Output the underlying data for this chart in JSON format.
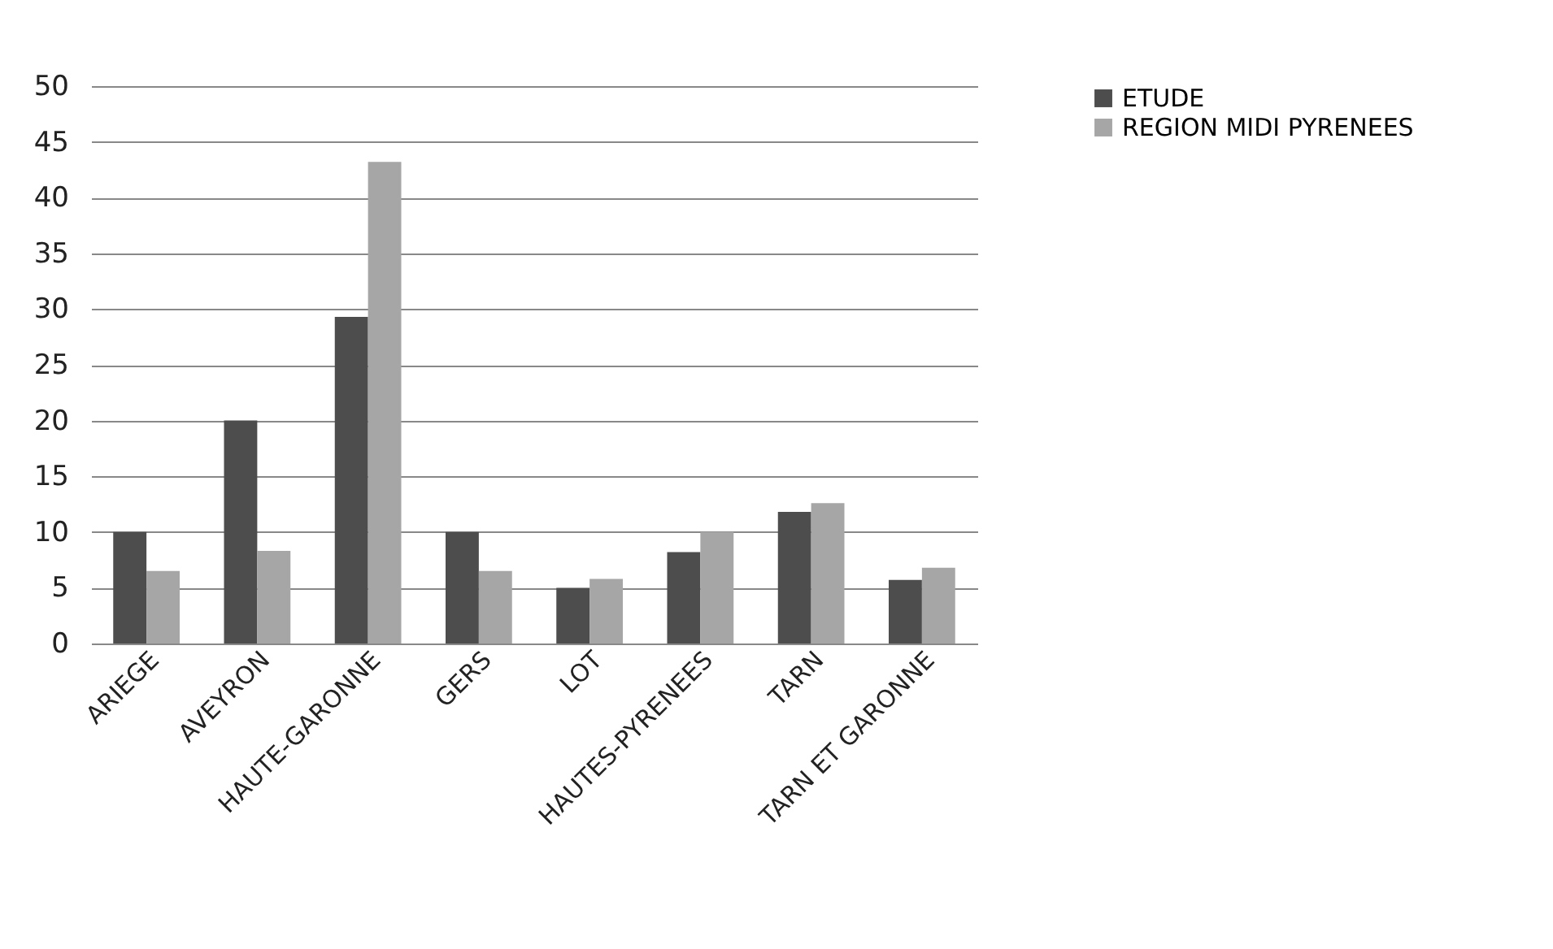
{
  "chart_data": {
    "type": "bar",
    "categories": [
      "ARIEGE",
      "AVEYRON",
      "HAUTE-GARONNE",
      "GERS",
      "LOT",
      "HAUTES-PYRENEES",
      "TARN",
      "TARN ET GARONNE"
    ],
    "series": [
      {
        "name": "ETUDE",
        "color": "#4d4d4d",
        "values": [
          10,
          20,
          29.3,
          10,
          5,
          8.2,
          11.8,
          5.7
        ]
      },
      {
        "name": "REGION MIDI PYRENEES",
        "color": "#a6a6a6",
        "values": [
          6.5,
          8.3,
          43.2,
          6.5,
          5.8,
          10,
          12.6,
          6.8
        ]
      }
    ],
    "ylim": [
      0,
      50
    ],
    "yticks": [
      0,
      5,
      10,
      15,
      20,
      25,
      30,
      35,
      40,
      45,
      50
    ],
    "grid": "y",
    "legend": "right"
  }
}
